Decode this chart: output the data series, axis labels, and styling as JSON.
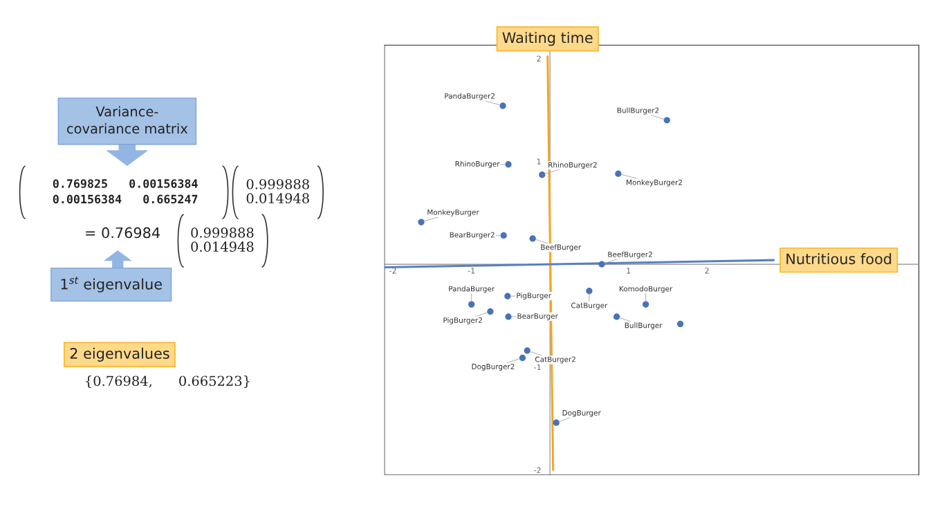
{
  "chart_data": {
    "type": "scatter",
    "xlim": [
      -2.11,
      4.7
    ],
    "ylim": [
      -2.05,
      2.13
    ],
    "xticks": [
      -2,
      -1,
      1,
      2
    ],
    "yticks": [
      -2,
      -1,
      1,
      2
    ],
    "grid": false,
    "legend": false,
    "series": [
      {
        "marker": "circle",
        "color": "#4a72b8",
        "x": [
          -0.6,
          1.49,
          -0.53,
          -0.1,
          0.87,
          -1.64,
          -0.59,
          -0.22,
          0.66,
          -1.0,
          -0.54,
          -0.76,
          -0.53,
          0.5,
          1.22,
          0.85,
          1.66,
          -0.29,
          -0.35,
          0.08
        ],
        "values": [
          1.54,
          1.4,
          0.97,
          0.87,
          0.88,
          0.41,
          0.28,
          0.25,
          0.0,
          -0.39,
          -0.31,
          -0.46,
          -0.51,
          -0.26,
          -0.39,
          -0.51,
          -0.58,
          -0.84,
          -0.91,
          -1.54
        ]
      },
      {
        "type": "line",
        "marker": "none",
        "name": "Waiting time",
        "color": "#f5a623",
        "x": [
          -0.03,
          0.04
        ],
        "values": [
          2.02,
          -2.0
        ]
      },
      {
        "type": "line",
        "marker": "none",
        "name": "Nutritious food",
        "color": "#5a7fc2",
        "x": [
          2.85,
          -2.11
        ],
        "values": [
          0.04,
          -0.03
        ]
      }
    ],
    "annotations": [
      "Variance-\ncovariance matrix",
      "0.769825   0.00156384\n0.00156384   0.665247",
      "0.999888\n0.014948",
      "= 0.76984",
      "0.999888\n0.014948",
      "1$^{st}$ eigenvalue",
      "2 eigenvalues",
      "{0.76984,      0.665223}",
      {
        "text": "PandaBurger2",
        "x": -0.6,
        "y": 1.54
      },
      {
        "text": "BullBurger2",
        "x": 1.49,
        "y": 1.4
      },
      {
        "text": "RhinoBurger",
        "x": -0.53,
        "y": 0.97
      },
      {
        "text": "RhinoBurger2",
        "x": -0.1,
        "y": 0.87
      },
      {
        "text": "MonkeyBurger2",
        "x": 0.87,
        "y": 0.88
      },
      {
        "text": "MonkeyBurger",
        "x": -1.64,
        "y": 0.41
      },
      {
        "text": "BearBurger2",
        "x": -0.59,
        "y": 0.28
      },
      {
        "text": "BeefBurger",
        "x": -0.22,
        "y": 0.25
      },
      {
        "text": "BeefBurger2",
        "x": 0.66,
        "y": 0.0
      },
      {
        "text": "PandaBurger",
        "x": -1.0,
        "y": -0.39
      },
      {
        "text": "PigBurger",
        "x": -0.54,
        "y": -0.31
      },
      {
        "text": "PigBurger2",
        "x": -0.76,
        "y": -0.46
      },
      {
        "text": "BearBurger",
        "x": -0.53,
        "y": -0.51
      },
      {
        "text": "CatBurger",
        "x": 0.5,
        "y": -0.26
      },
      {
        "text": "KomodoBurger",
        "x": 1.22,
        "y": -0.39
      },
      {
        "text": "BullBurger",
        "x": 0.85,
        "y": -0.51
      },
      {
        "text": "CatBurger2",
        "x": -0.29,
        "y": -0.84
      },
      {
        "text": "DogBurger2",
        "x": -0.35,
        "y": -0.91
      },
      {
        "text": "DogBurger",
        "x": 0.08,
        "y": -1.54
      }
    ]
  }
}
